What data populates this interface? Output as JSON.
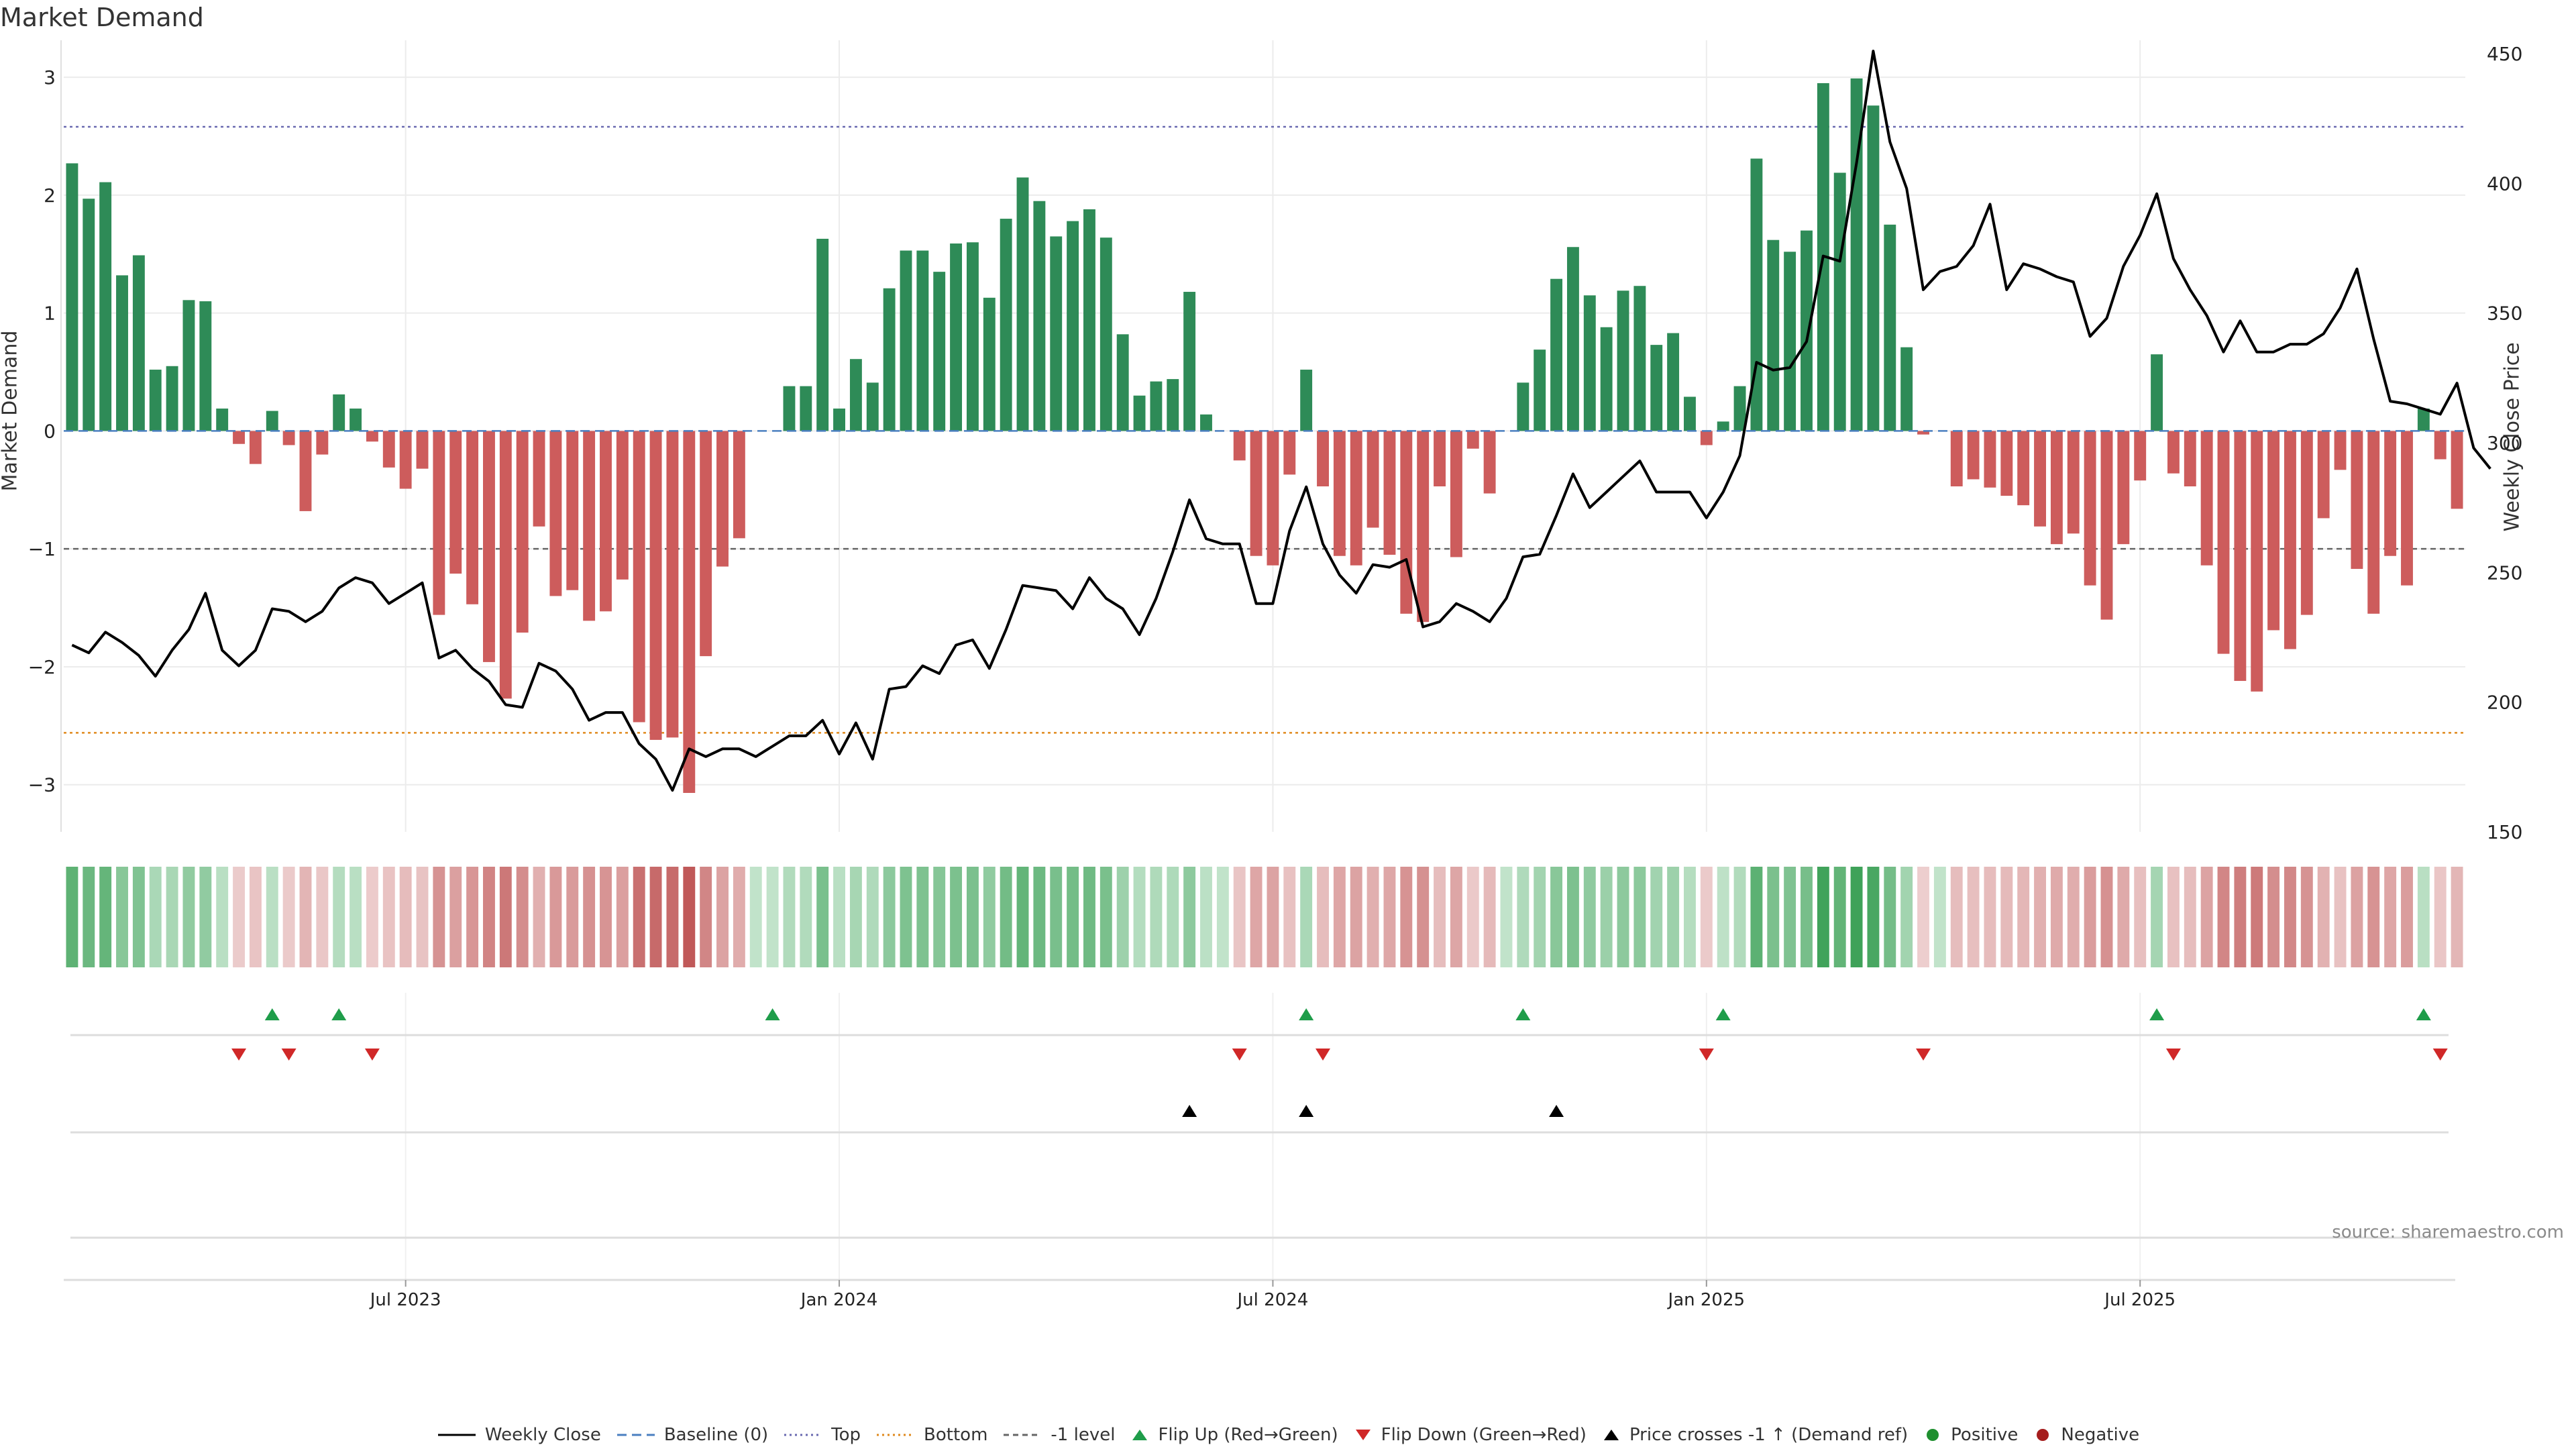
{
  "chart_data": {
    "type": "bar",
    "title": "Market Demand",
    "ylabel": "Market Demand",
    "ylabel_right": "Weekly Close Price",
    "ylim": [
      -3.4,
      3.2
    ],
    "ylim_right": [
      150,
      450
    ],
    "yticks_left": [
      "3",
      "2",
      "1",
      "0",
      "−1",
      "−2",
      "−3"
    ],
    "yticks_right": [
      "450",
      "400",
      "350",
      "300",
      "250",
      "200",
      "150"
    ],
    "x_tick_labels": [
      "Jul 2023",
      "Jan 2024",
      "Jul 2024",
      "Jan 2025",
      "Jul 2025"
    ],
    "x_tick_weeks": [
      20,
      46,
      72,
      98,
      124
    ],
    "reference_lines": {
      "top": 2.58,
      "bottom": -2.56,
      "minus_one": -1,
      "baseline": 0
    },
    "colors": {
      "positive": "#2e8b57",
      "negative": "#cd5c5c",
      "price": "#000000",
      "top_line": "#6a6ab0",
      "bottom_line": "#e08a1e",
      "minus_one_line": "#666666",
      "baseline_line": "#4a7fc0",
      "flip_up": "#1f9d4a",
      "flip_down": "#d02828",
      "cross": "#000000",
      "dot_positive": "#1f8f2f",
      "dot_negative": "#a51d1d"
    },
    "demand": [
      2.27,
      1.97,
      2.11,
      1.32,
      1.49,
      0.52,
      0.55,
      1.11,
      1.1,
      0.19,
      -0.11,
      -0.28,
      0.17,
      -0.12,
      -0.68,
      -0.2,
      0.31,
      0.19,
      -0.09,
      -0.31,
      -0.49,
      -0.32,
      -1.56,
      -1.21,
      -1.47,
      -1.96,
      -2.27,
      -1.71,
      -0.81,
      -1.4,
      -1.35,
      -1.61,
      -1.53,
      -1.26,
      -2.47,
      -2.62,
      -2.6,
      -3.07,
      -1.91,
      -1.15,
      -0.91,
      0,
      0,
      0.38,
      0.38,
      1.63,
      0.19,
      0.61,
      0.41,
      1.21,
      1.53,
      1.53,
      1.35,
      1.59,
      1.6,
      1.13,
      1.8,
      2.15,
      1.95,
      1.65,
      1.78,
      1.88,
      1.64,
      0.82,
      0.3,
      0.42,
      0.44,
      1.18,
      0.14,
      0,
      -0.25,
      -1.06,
      -1.14,
      -0.37,
      0.52,
      -0.47,
      -1.06,
      -1.14,
      -0.82,
      -1.05,
      -1.55,
      -1.62,
      -0.47,
      -1.07,
      -0.15,
      -0.53,
      0,
      0.41,
      0.69,
      1.29,
      1.56,
      1.15,
      0.88,
      1.19,
      1.23,
      0.73,
      0.83,
      0.29,
      -0.12,
      0.08,
      0.38,
      2.31,
      1.62,
      1.52,
      1.7,
      2.95,
      2.19,
      2.99,
      2.76,
      1.75,
      0.71,
      -0.03,
      0,
      -0.47,
      -0.41,
      -0.48,
      -0.55,
      -0.63,
      -0.81,
      -0.96,
      -0.87,
      -1.31,
      -1.6,
      -0.96,
      -0.42,
      0.65,
      -0.36,
      -0.47,
      -1.14,
      -1.89,
      -2.12,
      -2.21,
      -1.69,
      -1.85,
      -1.56,
      -0.74,
      -0.33,
      -1.17,
      -1.55,
      -1.06,
      -1.31,
      0.19,
      -0.24,
      -0.66
    ],
    "price": [
      222,
      219,
      227,
      223,
      218,
      210,
      220,
      228,
      242,
      220,
      214,
      220,
      236,
      235,
      231,
      235,
      244,
      248,
      246,
      238,
      242,
      246,
      217,
      220,
      213,
      208,
      199,
      198,
      215,
      212,
      205,
      193,
      196,
      196,
      184,
      178,
      166,
      182,
      179,
      182,
      182,
      179,
      183,
      187,
      187,
      193,
      180,
      192,
      178,
      205,
      206,
      214,
      211,
      222,
      224,
      213,
      228,
      245,
      244,
      243,
      236,
      248,
      240,
      236,
      226,
      240,
      258,
      278,
      263,
      261,
      261,
      238,
      238,
      266,
      283,
      261,
      249,
      242,
      253,
      252,
      255,
      229,
      231,
      238,
      235,
      231,
      240,
      256,
      257,
      272,
      288,
      275,
      281,
      287,
      293,
      281,
      281,
      281,
      271,
      281,
      295,
      331,
      328,
      329,
      339,
      372,
      370,
      408,
      451,
      416,
      398,
      359,
      366,
      368,
      376,
      392,
      359,
      369,
      367,
      364,
      362,
      341,
      348,
      368,
      380,
      396,
      371,
      359,
      349,
      335,
      347,
      335,
      335,
      338,
      338,
      342,
      352,
      367,
      340,
      316,
      315,
      313,
      311,
      323,
      298,
      290
    ],
    "flip_up_weeks": [
      12,
      16,
      42,
      74,
      87,
      99,
      125,
      141
    ],
    "flip_down_weeks": [
      10,
      13,
      18,
      70,
      75,
      98,
      111,
      126,
      142
    ],
    "cross_weeks": [
      67,
      74,
      89
    ],
    "strip_shade_levels": "computed-from-demand"
  },
  "legend": [
    {
      "key": "weekly_close",
      "label": "Weekly Close"
    },
    {
      "key": "baseline",
      "label": "Baseline (0)"
    },
    {
      "key": "top",
      "label": "Top"
    },
    {
      "key": "bottom",
      "label": "Bottom"
    },
    {
      "key": "minus_one",
      "label": "-1 level"
    },
    {
      "key": "flip_up",
      "label": "Flip Up (Red→Green)"
    },
    {
      "key": "flip_down",
      "label": "Flip Down (Green→Red)"
    },
    {
      "key": "cross",
      "label": "Price crosses -1 ↑ (Demand ref)"
    },
    {
      "key": "positive",
      "label": "Positive"
    },
    {
      "key": "negative",
      "label": "Negative"
    }
  ],
  "source": "source: sharemaestro.com"
}
